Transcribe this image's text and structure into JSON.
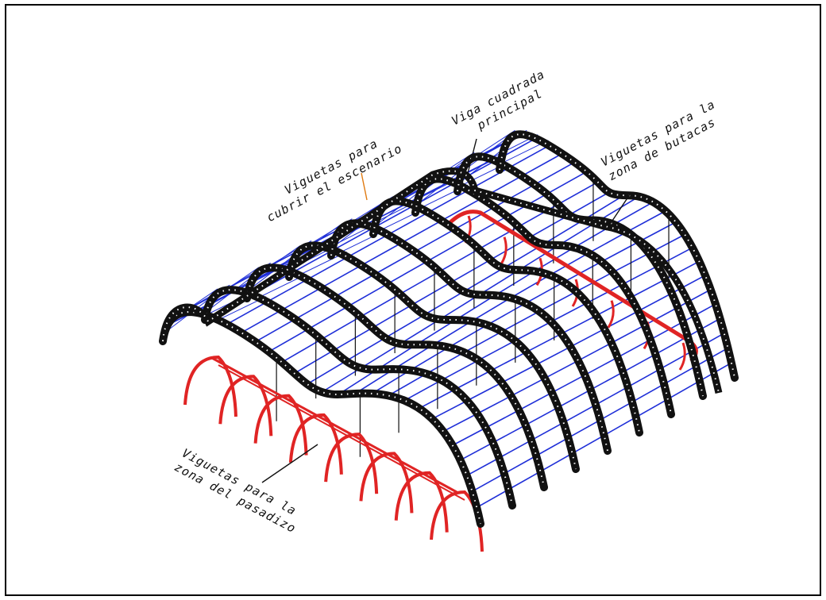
{
  "colors": {
    "primary_beam": "#111111",
    "joists": "#1f2fd8",
    "walkway": "#e02424",
    "annotation": "#111111",
    "leader_orange": "#e07a10",
    "border": "#000000",
    "background": "#ffffff"
  },
  "labels": {
    "stage_joists": [
      "Viguetas para",
      "cubrir el escenario"
    ],
    "main_beam": [
      "Viga cuadrada",
      "principal"
    ],
    "seating_joists": [
      "Viguetas para la",
      "zona de butacas"
    ],
    "walkway_joists": [
      "Viguetas para la",
      "zona del pasadizo"
    ]
  }
}
